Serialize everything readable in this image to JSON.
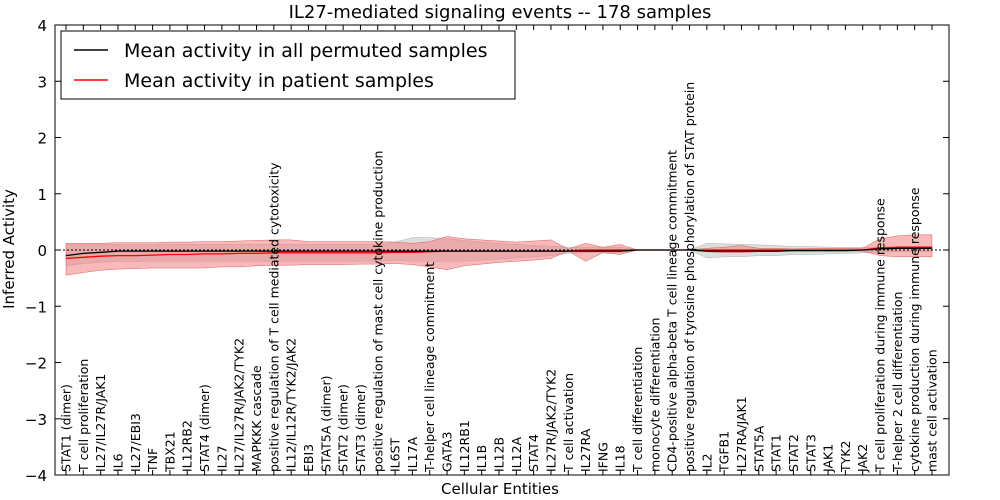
{
  "chart_data": {
    "type": "line",
    "title": "IL27-mediated signaling events -- 178 samples",
    "xlabel": "Cellular Entities",
    "ylabel": "Inferred Activity",
    "ylim": [
      -4,
      4
    ],
    "yticks": [
      "4",
      "3",
      "2",
      "1",
      "0",
      "−1",
      "−2",
      "−3",
      "−4"
    ],
    "ytick_values": [
      4,
      3,
      2,
      1,
      0,
      -1,
      -2,
      -3,
      -4
    ],
    "legend_position": "top-left",
    "categories": [
      "STAT1 (dimer)",
      "T cell proliferation",
      "IL27/IL27R/JAK1",
      "IL6",
      "IL27/EBI3",
      "TNF",
      "TBX21",
      "IL12RB2",
      "STAT4 (dimer)",
      "IL27",
      "IL27/IL27R/JAK2/TYK2",
      "MAPKKK cascade",
      "positive regulation of T cell mediated cytotoxicity",
      "IL12/IL12R/TYK2/JAK2",
      "EBI3",
      "STAT5A (dimer)",
      "STAT2 (dimer)",
      "STAT3 (dimer)",
      "positive regulation of mast cell cytokine production",
      "IL6ST",
      "IL17A",
      "T-helper cell lineage commitment",
      "GATA3",
      "IL12RB1",
      "IL1B",
      "IL12B",
      "IL12A",
      "STAT4",
      "IL27R/JAK2/TYK2",
      "T cell activation",
      "IL27RA",
      "IFNG",
      "IL18",
      "T cell differentiation",
      "monocyte differentiation",
      "CD4-positive alpha-beta T cell lineage commitment",
      "positive regulation of tyrosine phosphorylation of STAT protein",
      "IL2",
      "TGFB1",
      "IL27RA/JAK1",
      "STAT5A",
      "STAT1",
      "STAT2",
      "STAT3",
      "JAK1",
      "TYK2",
      "JAK2",
      "T cell proliferation during immune response",
      "T-helper 2 cell differentiation",
      "cytokine production during immune response",
      "mast cell activation"
    ],
    "series": [
      {
        "name": "Mean activity in all permuted samples",
        "color": "#000000",
        "band_color": "#c8c8c8",
        "values": [
          -0.1,
          -0.06,
          -0.04,
          -0.02,
          -0.02,
          -0.02,
          -0.02,
          -0.02,
          -0.02,
          -0.02,
          -0.02,
          -0.02,
          -0.02,
          -0.02,
          -0.02,
          -0.02,
          -0.02,
          -0.02,
          -0.02,
          -0.02,
          -0.02,
          -0.02,
          -0.02,
          -0.02,
          -0.02,
          -0.02,
          -0.02,
          -0.02,
          -0.02,
          -0.02,
          -0.02,
          -0.02,
          -0.02,
          0.0,
          0.0,
          0.0,
          0.0,
          -0.02,
          -0.02,
          -0.02,
          -0.02,
          -0.02,
          -0.01,
          -0.01,
          -0.01,
          -0.01,
          0.0,
          0.02,
          0.03,
          0.03,
          0.03
        ],
        "lower": [
          -0.28,
          -0.24,
          -0.22,
          -0.2,
          -0.2,
          -0.2,
          -0.2,
          -0.2,
          -0.2,
          -0.2,
          -0.2,
          -0.2,
          -0.2,
          -0.2,
          -0.2,
          -0.2,
          -0.2,
          -0.2,
          -0.2,
          -0.18,
          -0.2,
          -0.2,
          -0.2,
          -0.2,
          -0.18,
          -0.16,
          -0.14,
          -0.12,
          -0.1,
          -0.06,
          -0.05,
          -0.05,
          -0.05,
          0.0,
          0.0,
          0.0,
          0.0,
          -0.14,
          -0.12,
          -0.12,
          -0.1,
          -0.1,
          -0.08,
          -0.08,
          -0.07,
          -0.06,
          -0.05,
          -0.04,
          -0.03,
          -0.03,
          -0.03
        ],
        "upper": [
          0.1,
          0.1,
          0.1,
          0.1,
          0.1,
          0.1,
          0.1,
          0.1,
          0.1,
          0.1,
          0.1,
          0.1,
          0.1,
          0.1,
          0.1,
          0.1,
          0.1,
          0.1,
          0.1,
          0.14,
          0.22,
          0.22,
          0.2,
          0.17,
          0.14,
          0.12,
          0.1,
          0.08,
          0.07,
          0.05,
          0.05,
          0.05,
          0.05,
          0.0,
          0.0,
          0.0,
          0.0,
          0.12,
          0.11,
          0.1,
          0.09,
          0.08,
          0.06,
          0.06,
          0.05,
          0.05,
          0.05,
          0.05,
          0.05,
          0.05,
          0.05
        ]
      },
      {
        "name": "Mean activity in patient samples",
        "color": "#ff0000",
        "band_color": "#f08080",
        "values": [
          -0.15,
          -0.13,
          -0.11,
          -0.1,
          -0.1,
          -0.09,
          -0.08,
          -0.08,
          -0.07,
          -0.07,
          -0.06,
          -0.06,
          -0.05,
          -0.05,
          -0.05,
          -0.05,
          -0.05,
          -0.05,
          -0.05,
          -0.04,
          -0.04,
          -0.03,
          -0.02,
          -0.02,
          -0.02,
          -0.02,
          -0.02,
          -0.02,
          -0.02,
          -0.02,
          0.0,
          0.0,
          0.0,
          0.0,
          0.0,
          0.0,
          0.0,
          0.0,
          0.0,
          0.0,
          0.0,
          0.0,
          0.0,
          0.0,
          0.0,
          0.0,
          0.0,
          0.04,
          0.05,
          0.05,
          0.05
        ],
        "lower": [
          -0.45,
          -0.4,
          -0.36,
          -0.34,
          -0.33,
          -0.32,
          -0.32,
          -0.32,
          -0.32,
          -0.3,
          -0.3,
          -0.28,
          -0.27,
          -0.27,
          -0.26,
          -0.26,
          -0.26,
          -0.25,
          -0.25,
          -0.24,
          -0.26,
          -0.3,
          -0.35,
          -0.28,
          -0.25,
          -0.22,
          -0.2,
          -0.18,
          -0.15,
          -0.02,
          -0.2,
          -0.05,
          -0.08,
          0.0,
          0.0,
          0.0,
          0.0,
          -0.03,
          -0.05,
          -0.05,
          -0.03,
          -0.03,
          -0.02,
          -0.02,
          -0.02,
          -0.02,
          -0.02,
          -0.1,
          -0.12,
          -0.12,
          -0.12
        ],
        "upper": [
          0.12,
          0.12,
          0.12,
          0.13,
          0.13,
          0.13,
          0.14,
          0.14,
          0.15,
          0.15,
          0.16,
          0.17,
          0.18,
          0.18,
          0.15,
          0.15,
          0.15,
          0.15,
          0.15,
          0.14,
          0.12,
          0.15,
          0.24,
          0.2,
          0.18,
          0.16,
          0.14,
          0.16,
          0.18,
          0.02,
          0.12,
          0.05,
          0.1,
          0.0,
          0.0,
          0.0,
          0.0,
          0.03,
          0.05,
          0.08,
          0.03,
          0.03,
          0.02,
          0.03,
          0.03,
          0.03,
          0.03,
          0.2,
          0.25,
          0.27,
          0.27
        ]
      }
    ]
  }
}
